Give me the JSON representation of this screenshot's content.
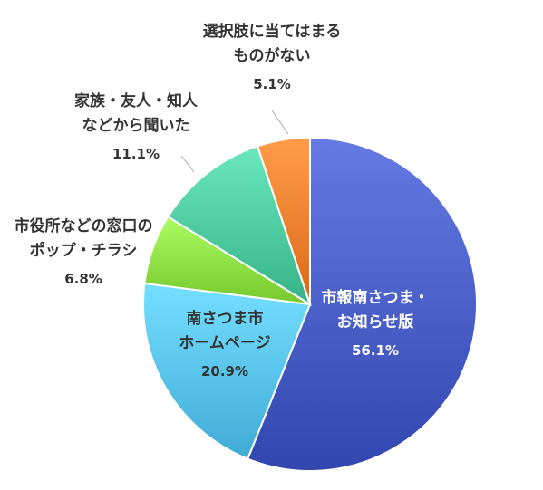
{
  "chart_data": {
    "type": "pie",
    "start_angle_deg": 0,
    "direction": "clockwise",
    "slices": [
      {
        "lines": [
          "市報南さつま・",
          "お知らせ版"
        ],
        "percent_label": "56.1%",
        "value": 56.1,
        "color": "#4a5ec8",
        "label_color": "#ffffff"
      },
      {
        "lines": [
          "南さつま市",
          "ホームページ"
        ],
        "percent_label": "20.9%",
        "value": 20.9,
        "color": "#58c3ee",
        "label_color": "#333333"
      },
      {
        "lines": [
          "市役所などの窓口の",
          "ポップ・チラシ"
        ],
        "percent_label": "6.8%",
        "value": 6.8,
        "color": "#8ee045",
        "label_color": "#333333"
      },
      {
        "lines": [
          "家族・友人・知人",
          "などから聞いた"
        ],
        "percent_label": "11.1%",
        "value": 11.1,
        "color": "#4ecba0",
        "label_color": "#333333"
      },
      {
        "lines": [
          "選択肢に当てはまる",
          "ものがない"
        ],
        "percent_label": "5.1%",
        "value": 5.1,
        "color": "#f3802e",
        "label_color": "#333333"
      }
    ]
  }
}
